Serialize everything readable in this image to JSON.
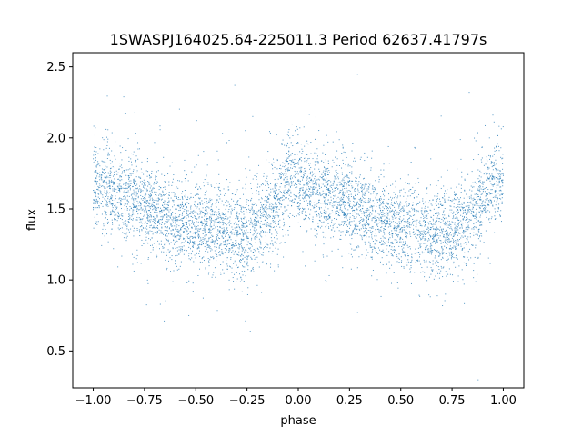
{
  "chart_data": {
    "type": "scatter",
    "title": "1SWASPJ164025.64-225011.3 Period 62637.41797s",
    "xlabel": "phase",
    "ylabel": "flux",
    "xlim": [
      -1.1,
      1.1
    ],
    "ylim": [
      0.24,
      2.6
    ],
    "xticks": [
      -1.0,
      -0.75,
      -0.5,
      -0.25,
      0.0,
      0.25,
      0.5,
      0.75,
      1.0
    ],
    "xtick_labels": [
      "−1.00",
      "−0.75",
      "−0.50",
      "−0.25",
      "0.00",
      "0.25",
      "0.50",
      "0.75",
      "1.00"
    ],
    "yticks": [
      0.5,
      1.0,
      1.5,
      2.0,
      2.5
    ],
    "ytick_labels": [
      "0.5",
      "1.0",
      "1.5",
      "2.0",
      "2.5"
    ],
    "grid": false,
    "marker_color": "#1f77b4",
    "series": [
      {
        "x_range": [
          -1.0,
          1.0
        ],
        "point_count_approx": 6000,
        "trend": {
          "phase": [
            -1.0,
            -0.9,
            -0.8,
            -0.7,
            -0.6,
            -0.5,
            -0.4,
            -0.3,
            -0.2,
            -0.1,
            -0.05,
            0.0,
            0.1,
            0.2,
            0.3,
            0.4,
            0.5,
            0.6,
            0.7,
            0.8,
            0.9,
            0.95,
            1.0
          ],
          "flux": [
            1.68,
            1.62,
            1.56,
            1.48,
            1.42,
            1.38,
            1.35,
            1.32,
            1.38,
            1.55,
            1.72,
            1.68,
            1.62,
            1.56,
            1.48,
            1.42,
            1.38,
            1.35,
            1.32,
            1.38,
            1.55,
            1.72,
            1.68
          ]
        },
        "scatter_sigma": 0.15
      }
    ]
  }
}
